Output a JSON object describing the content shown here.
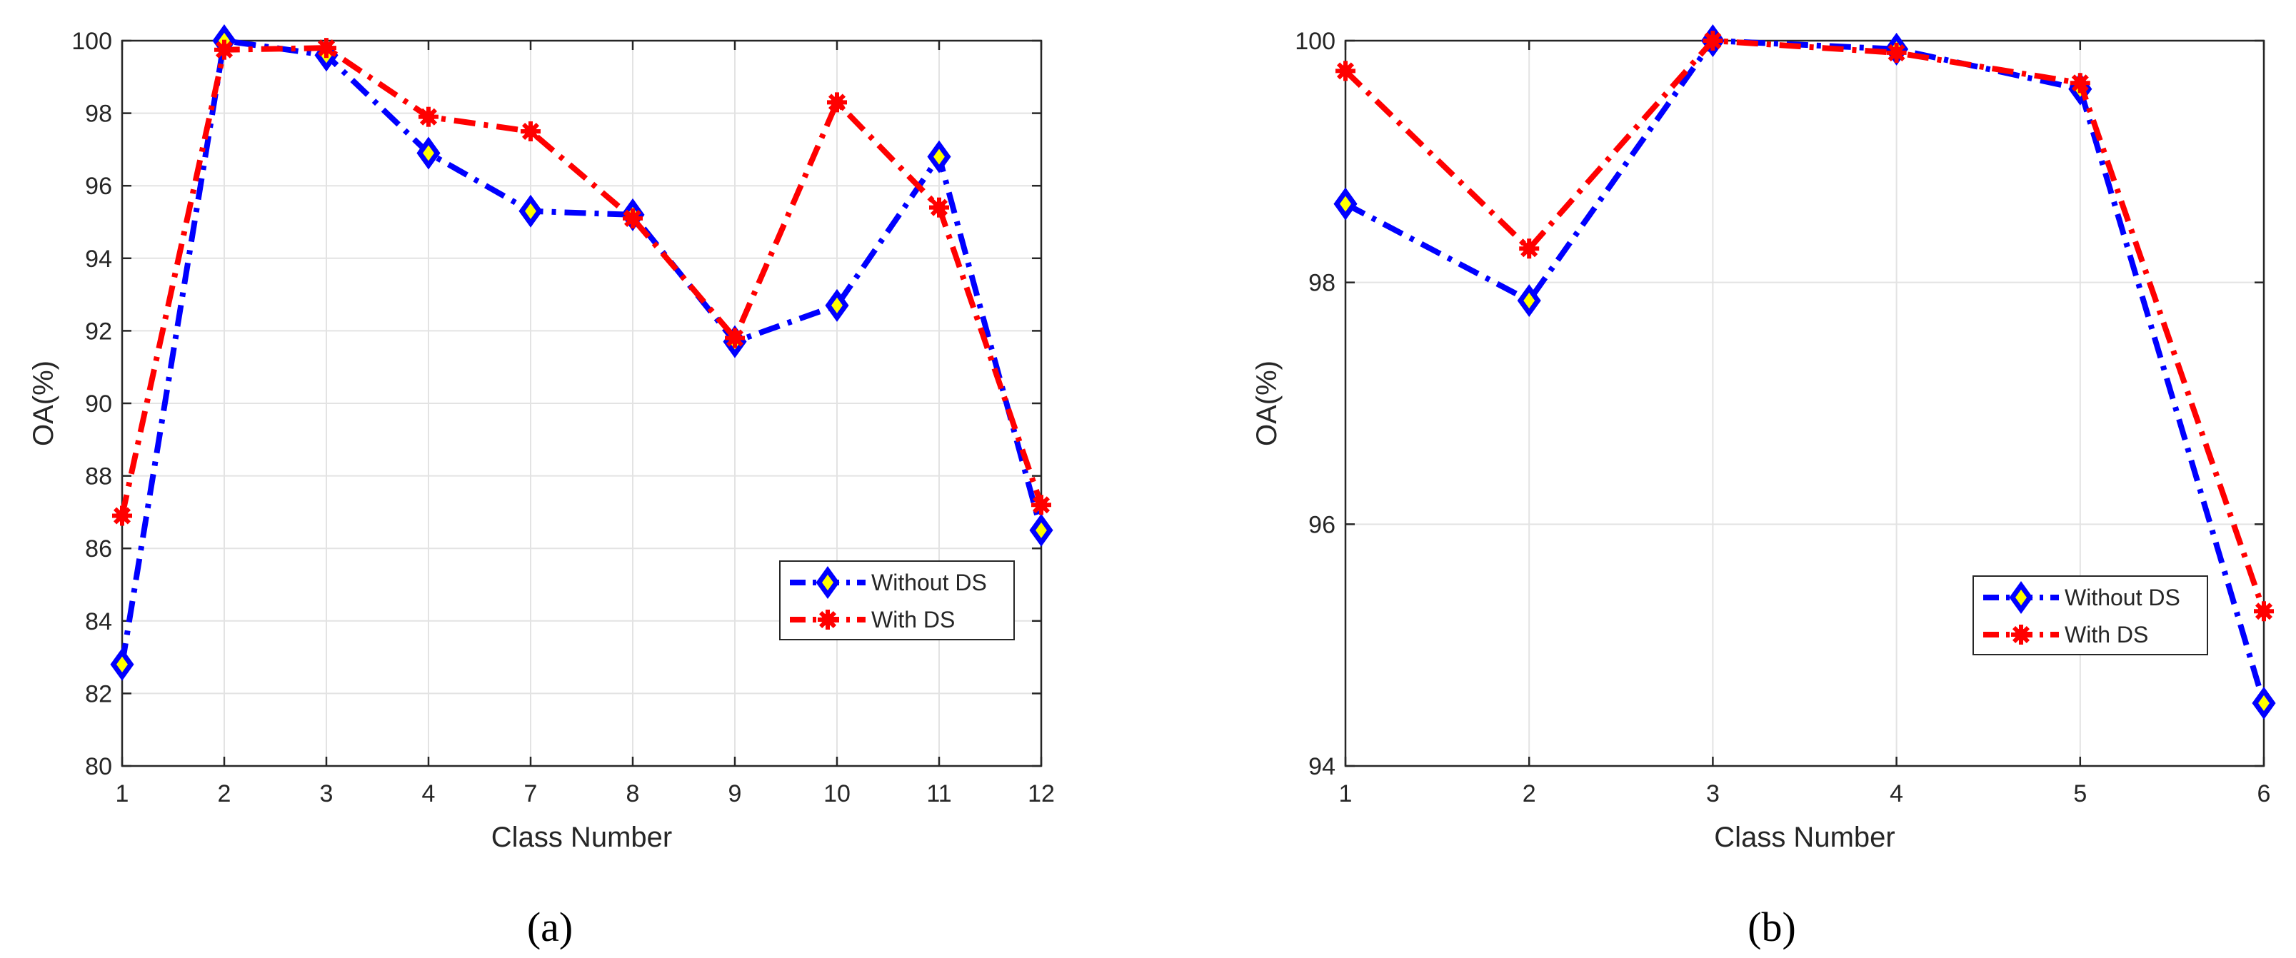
{
  "chart_data": [
    {
      "type": "line",
      "caption": "(a)",
      "categories": [
        "1",
        "2",
        "3",
        "4",
        "7",
        "8",
        "9",
        "10",
        "11",
        "12"
      ],
      "xlabel": "Class Number",
      "ylabel": "OA(%)",
      "ylim": [
        80,
        100
      ],
      "yticks": [
        "80",
        "82",
        "84",
        "86",
        "88",
        "90",
        "92",
        "94",
        "96",
        "98",
        "100"
      ],
      "grid": true,
      "legend_position": "lower-right",
      "series": [
        {
          "name": "Without DS",
          "color": "#0000ff",
          "marker": "diamond",
          "marker_fill": "#ffff00",
          "values": [
            82.8,
            100.0,
            99.6,
            96.9,
            95.3,
            95.2,
            91.7,
            92.7,
            96.8,
            86.5
          ]
        },
        {
          "name": "With DS",
          "color": "#ff0000",
          "marker": "asterisk",
          "marker_fill": "#ff0000",
          "values": [
            86.9,
            99.75,
            99.8,
            97.9,
            97.5,
            95.1,
            91.8,
            98.3,
            95.4,
            87.2
          ]
        }
      ]
    },
    {
      "type": "line",
      "caption": "(b)",
      "categories": [
        "1",
        "2",
        "3",
        "4",
        "5",
        "6"
      ],
      "xlabel": "Class Number",
      "ylabel": "OA(%)",
      "ylim": [
        94,
        100
      ],
      "yticks": [
        "94",
        "96",
        "98",
        "100"
      ],
      "grid": true,
      "legend_position": "lower-right",
      "series": [
        {
          "name": "Without DS",
          "color": "#0000ff",
          "marker": "diamond",
          "marker_fill": "#ffff00",
          "values": [
            98.65,
            97.85,
            100.0,
            99.93,
            99.6,
            94.52
          ]
        },
        {
          "name": "With DS",
          "color": "#ff0000",
          "marker": "asterisk",
          "marker_fill": "#ff0000",
          "values": [
            99.75,
            98.28,
            100.0,
            99.9,
            99.65,
            95.28
          ]
        }
      ]
    }
  ]
}
